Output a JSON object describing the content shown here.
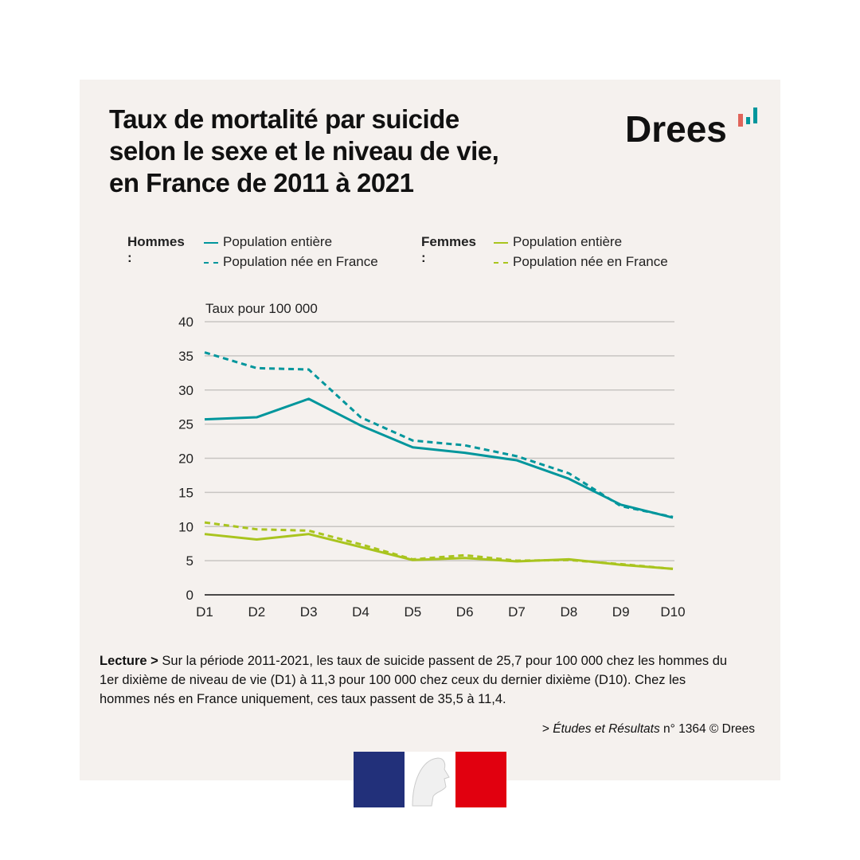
{
  "title": [
    "Taux de mortalité par suicide",
    "selon le sexe et le niveau de vie,",
    "en France de 2011 à 2021"
  ],
  "brand": "Drees",
  "legend": {
    "men": "Hommes :",
    "women": "Femmes :",
    "entire": "Population entière",
    "born": "Population née en France"
  },
  "colors": {
    "men": "#00969c",
    "women": "#a9c41e",
    "grid": "#c8c5c2"
  },
  "note": {
    "label": "Lecture >",
    "text": " Sur la période 2011-2021, les taux de suicide passent de 25,7 pour 100 000 chez les hommes du 1er dixième de niveau de vie (D1) à 11,3 pour 100 000 chez ceux du dernier dixième (D10). Chez les hommes nés en France uniquement, ces taux passent de 35,5 à 11,4."
  },
  "source": {
    "prefix": "> ",
    "pub": "Études et Résultats",
    "num": " n° 1364  © Drees"
  },
  "chart_data": {
    "type": "line",
    "ylabel": "Taux pour 100 000",
    "categories": [
      "D1",
      "D2",
      "D3",
      "D4",
      "D5",
      "D6",
      "D7",
      "D8",
      "D9",
      "D10"
    ],
    "ylim": [
      0,
      40
    ],
    "yticks": [
      0,
      5,
      10,
      15,
      20,
      25,
      30,
      35,
      40
    ],
    "series": [
      {
        "name": "Hommes - Population entière",
        "color": "men",
        "dash": false,
        "values": [
          25.7,
          26.0,
          28.7,
          24.8,
          21.6,
          20.8,
          19.7,
          17.0,
          13.2,
          11.3
        ]
      },
      {
        "name": "Hommes - Population née en France",
        "color": "men",
        "dash": true,
        "values": [
          35.5,
          33.2,
          33.0,
          26.0,
          22.6,
          21.9,
          20.3,
          17.8,
          13.0,
          11.4
        ]
      },
      {
        "name": "Femmes - Population entière",
        "color": "women",
        "dash": false,
        "values": [
          8.9,
          8.1,
          8.9,
          7.0,
          5.1,
          5.4,
          4.9,
          5.2,
          4.4,
          3.8
        ]
      },
      {
        "name": "Femmes - Population née en France",
        "color": "women",
        "dash": true,
        "values": [
          10.6,
          9.6,
          9.4,
          7.4,
          5.2,
          5.8,
          5.0,
          5.1,
          4.5,
          3.8
        ]
      }
    ]
  }
}
